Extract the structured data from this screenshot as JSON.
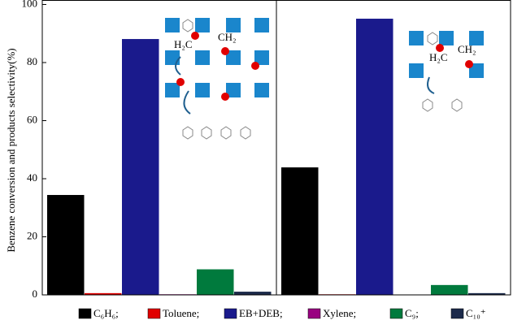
{
  "chart_data": {
    "type": "bar",
    "ylabel": "Benzene conversion and products selectivity(%)",
    "categories": [
      null,
      null
    ],
    "ylim": [
      0,
      100
    ],
    "yticks": [
      0,
      20,
      40,
      60,
      80,
      100
    ],
    "legend": "bottom",
    "series": [
      {
        "name": "C₆H₆;",
        "color": "#000000",
        "values": [
          34.4,
          43.9
        ]
      },
      {
        "name": "Toluene;",
        "color": "#e00000",
        "values": [
          0.6,
          0.2
        ]
      },
      {
        "name": "EB+DEB;",
        "color": "#1a1a8c",
        "values": [
          88.1,
          95.1
        ]
      },
      {
        "name": "Xylene;",
        "color": "#990080",
        "values": [
          0.2,
          0.1
        ]
      },
      {
        "name": "C₉;",
        "color": "#007a3d",
        "values": [
          8.8,
          3.4
        ]
      },
      {
        "name": "C₁₀⁺",
        "color": "#1c2a4a",
        "values": [
          1.1,
          0.6
        ]
      }
    ],
    "annotations": [
      "H₂C",
      "CH₂",
      "H₂C",
      "CH₂"
    ]
  }
}
